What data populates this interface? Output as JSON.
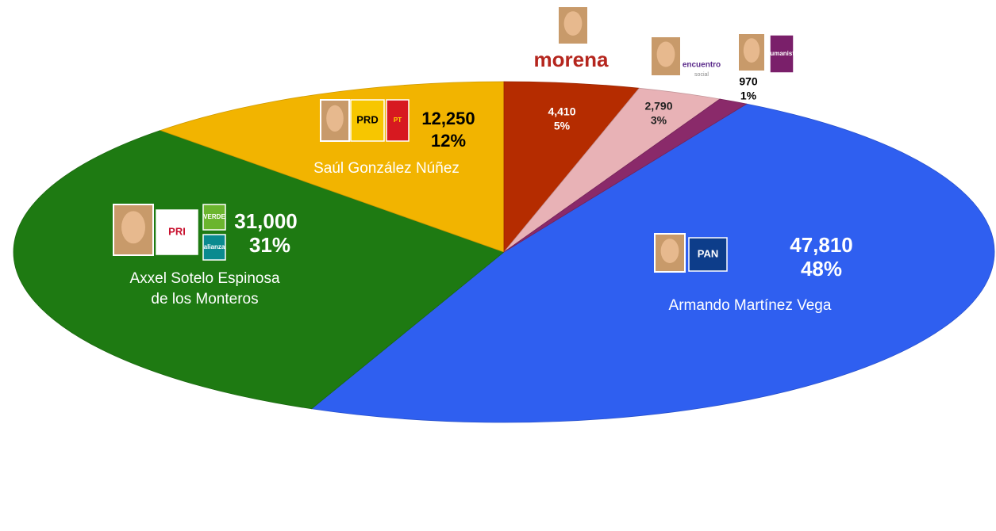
{
  "chart_data": {
    "type": "pie",
    "values": [
      47810,
      31000,
      12250,
      4410,
      2790,
      970
    ],
    "value_labels": [
      "47,810",
      "31,000",
      "12,250",
      "4,410",
      "2,790",
      "970"
    ],
    "percent_values": [
      48,
      31,
      12,
      5,
      3,
      1
    ],
    "percent_labels": [
      "48%",
      "31%",
      "12%",
      "5%",
      "3%",
      "1%"
    ],
    "colors": [
      "#2f5ff0",
      "#1e7a12",
      "#f2b400",
      "#b52c00",
      "#e8b2b6",
      "#8a2a6a"
    ],
    "labels": [
      [
        "Armando Martínez Vega"
      ],
      [
        "Axxel Sotelo Espinosa",
        "de los Monteros"
      ],
      [
        "Saúl González Núñez"
      ],
      null,
      null,
      null
    ],
    "logos": [
      [
        "PAN"
      ],
      [
        "PRI",
        "VERDE",
        "alianza"
      ],
      [
        "PRD",
        "PT"
      ],
      [
        "morena"
      ],
      [
        "encuentro",
        "social"
      ],
      [
        "Humanista"
      ]
    ]
  }
}
